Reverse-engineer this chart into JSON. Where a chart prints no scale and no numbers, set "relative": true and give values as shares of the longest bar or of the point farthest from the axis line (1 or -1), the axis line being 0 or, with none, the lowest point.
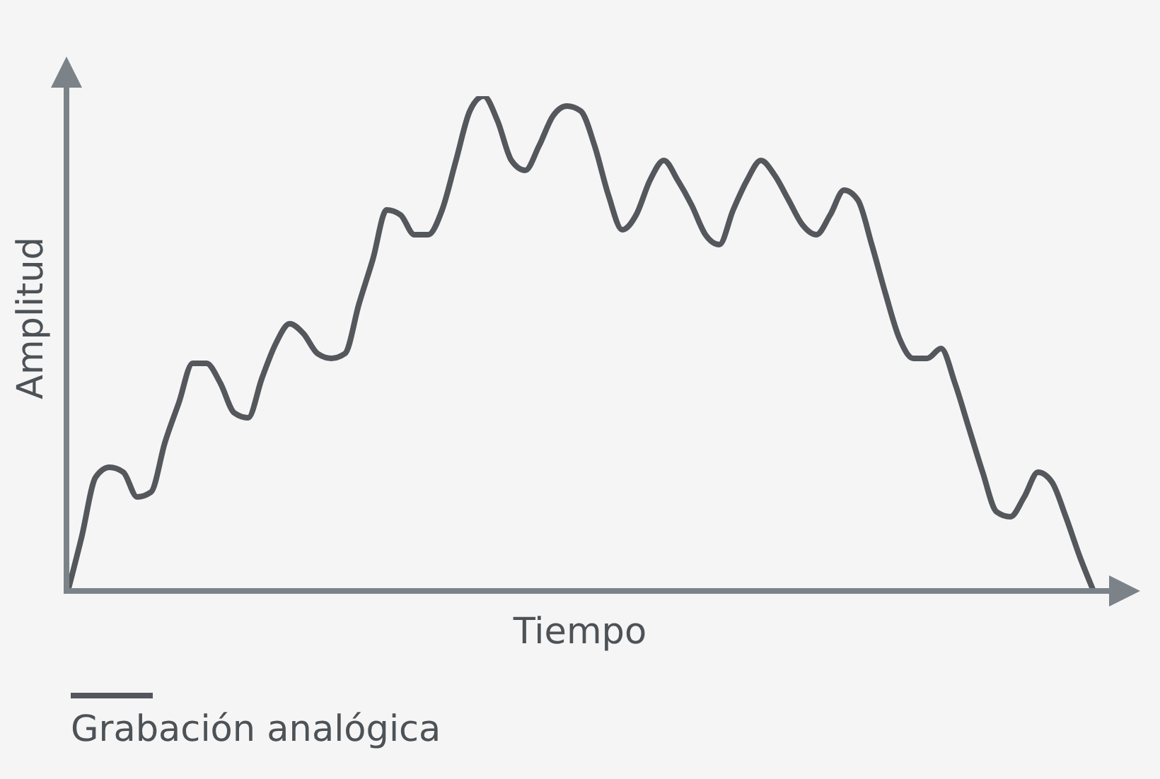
{
  "chart_data": {
    "type": "line",
    "xlabel": "Tiempo",
    "ylabel": "Amplitud",
    "relative": true,
    "legend": "bottom left",
    "categories": [
      null,
      null,
      null,
      null,
      null,
      null,
      null,
      null,
      null,
      null,
      null,
      null,
      null,
      null,
      null,
      null,
      null,
      null,
      null,
      null,
      null,
      null,
      null,
      null,
      null,
      null,
      null,
      null,
      null,
      null,
      null,
      null,
      null,
      null,
      null,
      null,
      null,
      null,
      null,
      null,
      null,
      null,
      null,
      null,
      null,
      null,
      null,
      null,
      null,
      null,
      null,
      null,
      null,
      null,
      null,
      null,
      null,
      null,
      null,
      null,
      null,
      null,
      null,
      null,
      null,
      null,
      null,
      null,
      null,
      null,
      null,
      null,
      null,
      null,
      null
    ],
    "series": [
      {
        "name": "Grabación analógica",
        "color": "#54575b",
        "values": [
          0,
          0.11,
          0.23,
          0.25,
          0.24,
          0.19,
          0.2,
          0.3,
          0.38,
          0.46,
          0.46,
          0.42,
          0.36,
          0.35,
          0.43,
          0.5,
          0.54,
          0.52,
          0.48,
          0.47,
          0.48,
          0.58,
          0.67,
          0.77,
          0.76,
          0.72,
          0.72,
          0.77,
          0.87,
          0.97,
          1,
          0.95,
          0.87,
          0.85,
          0.9,
          0.96,
          0.98,
          0.97,
          0.9,
          0.8,
          0.73,
          0.76,
          0.83,
          0.87,
          0.83,
          0.78,
          0.72,
          0.7,
          0.77,
          0.83,
          0.87,
          0.84,
          0.79,
          0.74,
          0.72,
          0.76,
          0.81,
          0.79,
          0.7,
          0.6,
          0.51,
          0.47,
          0.47,
          0.49,
          0.42,
          0.33,
          0.24,
          0.16,
          0.15,
          0.19,
          0.24,
          0.22,
          0.15,
          0.07,
          0
        ]
      }
    ]
  }
}
